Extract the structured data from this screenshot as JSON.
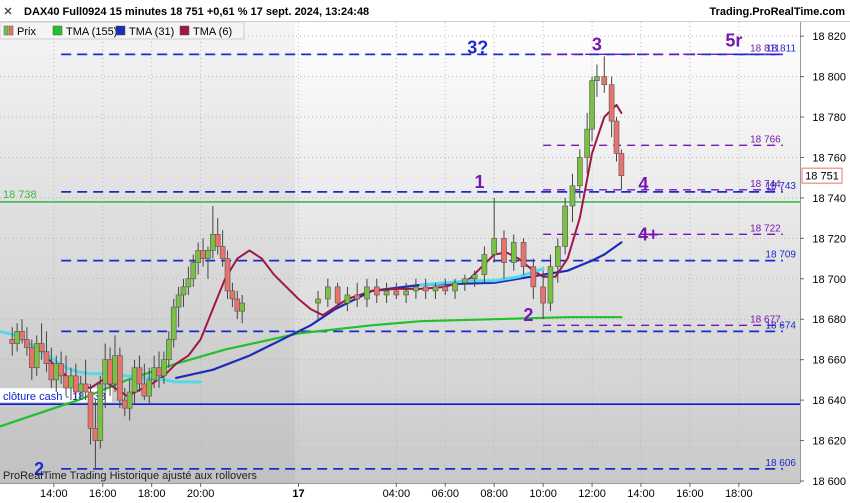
{
  "header": {
    "instrument_line": "DAX40 Full0924 15 minutes 18 751 +0,61 % 17 sept. 2024, 13:24:48",
    "brand": "Trading.ProRealTime.com"
  },
  "footer_note": "ProRealTime Trading Historique ajusté aux rollovers",
  "last_price_tag": "18 751",
  "colors": {
    "up": "#7ac143",
    "down": "#e8736c",
    "tma155": "#22c02a",
    "tma31": "#1d2bb5",
    "tma6": "#a01845",
    "cyan": "#55d8e8",
    "blue_level": "#1a2bd0",
    "purple": "#7a16b0",
    "green_level": "#3fb94a",
    "cash_line": "#0a1ed8"
  },
  "chart_data": {
    "type": "line",
    "legend": [
      {
        "label": "Prix",
        "color": "#e8736c",
        "icon": "candle-swatch"
      },
      {
        "label": "TMA (155)",
        "color": "#22c02a"
      },
      {
        "label": "TMA (31)",
        "color": "#1d2bb5"
      },
      {
        "label": "TMA (6)",
        "color": "#a01845"
      }
    ],
    "x_ticks": [
      "14:00",
      "16:00",
      "18:00",
      "20:00",
      "17",
      "04:00",
      "06:00",
      "08:00",
      "10:00",
      "12:00",
      "14:00",
      "16:00",
      "18:00"
    ],
    "x_tick_times": [
      -10,
      -8,
      -6,
      -4,
      0,
      4,
      6,
      8,
      10,
      12,
      14,
      16,
      18
    ],
    "x_range": [
      -12.2,
      20.5
    ],
    "y_ticks": [
      "18 820",
      "18 800",
      "18 780",
      "18 760",
      "18 740",
      "18 720",
      "18 700",
      "18 680",
      "18 660",
      "18 640",
      "18 620",
      "18 600"
    ],
    "y_tick_values": [
      18820,
      18800,
      18780,
      18760,
      18740,
      18720,
      18700,
      18680,
      18660,
      18640,
      18620,
      18600
    ],
    "ylim": [
      18599,
      18827
    ],
    "series": [
      {
        "name": "TMA (155)",
        "key": "tma155",
        "x": [
          -12.2,
          -9,
          -7,
          -5,
          -3,
          0,
          3,
          5,
          8,
          11,
          13.2
        ],
        "y": [
          18627,
          18640,
          18650,
          18658,
          18665,
          18673,
          18677,
          18679,
          18680,
          18681,
          18681
        ]
      },
      {
        "name": "TMA (31)",
        "key": "tma31",
        "x": [
          -5,
          -3.5,
          -2,
          -1,
          0.5,
          1.5,
          3,
          5,
          8,
          10,
          11,
          12,
          12.5,
          13.2
        ],
        "y": [
          18651,
          18655,
          18662,
          18668,
          18677,
          18685,
          18694,
          18697,
          18698,
          18702,
          18704,
          18709,
          18712,
          18718
        ]
      },
      {
        "name": "TMA (6)",
        "key": "tma6",
        "x": [
          -10.2,
          -9.5,
          -9,
          -8.5,
          -8,
          -7.5,
          -7,
          -6.5,
          -6,
          -5.5,
          -5,
          -4.5,
          -4,
          -3.5,
          -3,
          -2.5,
          -2,
          -1.5,
          -1,
          0,
          0.5,
          1,
          2,
          3,
          4,
          5,
          6,
          7,
          7.5,
          8,
          8.5,
          9,
          9.5,
          10,
          10.5,
          11,
          11.5,
          12,
          12.5,
          13,
          13.2
        ],
        "y": [
          18660,
          18652,
          18647,
          18646,
          18650,
          18646,
          18642,
          18645,
          18648,
          18652,
          18658,
          18662,
          18670,
          18685,
          18700,
          18710,
          18714,
          18710,
          18702,
          18690,
          18685,
          18682,
          18690,
          18694,
          18695,
          18695,
          18696,
          18700,
          18706,
          18712,
          18713,
          18710,
          18705,
          18701,
          18701,
          18710,
          18730,
          18762,
          18780,
          18786,
          18782
        ]
      },
      {
        "name": "",
        "key": "cyan",
        "x": [
          -12.2,
          -11.5,
          -11,
          -10.5,
          -10,
          -9.5,
          -9,
          -8.5,
          -8,
          -7.5,
          -7,
          -6.5,
          -6,
          -5.5,
          -5,
          -4.5,
          -4
        ],
        "y": [
          18674,
          18672,
          18668,
          18664,
          18660,
          18656,
          18654,
          18653,
          18653,
          18652,
          18652,
          18651,
          18651,
          18650,
          18649,
          18649,
          18649
        ]
      },
      {
        "name": "",
        "key": "cyan",
        "x": [
          5,
          6,
          7,
          8,
          9,
          10
        ],
        "y": [
          18697,
          18698,
          18699,
          18699,
          18701,
          18705
        ]
      }
    ],
    "candles": [
      [
        -11.7,
        18670,
        18676,
        18662,
        18668
      ],
      [
        -11.5,
        18668,
        18678,
        18664,
        18674
      ],
      [
        -11.3,
        18674,
        18680,
        18668,
        18670
      ],
      [
        -11.1,
        18670,
        18676,
        18662,
        18666
      ],
      [
        -10.9,
        18666,
        18670,
        18650,
        18656
      ],
      [
        -10.7,
        18656,
        18672,
        18652,
        18668
      ],
      [
        -10.5,
        18668,
        18678,
        18660,
        18664
      ],
      [
        -10.3,
        18664,
        18674,
        18654,
        18658
      ],
      [
        -10.1,
        18658,
        18666,
        18646,
        18650
      ],
      [
        -9.9,
        18650,
        18662,
        18644,
        18658
      ],
      [
        -9.7,
        18658,
        18664,
        18648,
        18652
      ],
      [
        -9.5,
        18652,
        18662,
        18642,
        18646
      ],
      [
        -9.3,
        18646,
        18656,
        18640,
        18652
      ],
      [
        -9.1,
        18652,
        18658,
        18640,
        18644
      ],
      [
        -8.9,
        18644,
        18652,
        18640,
        18648
      ],
      [
        -8.7,
        18648,
        18660,
        18640,
        18644
      ],
      [
        -8.5,
        18644,
        18648,
        18618,
        18626
      ],
      [
        -8.3,
        18626,
        18640,
        18606,
        18620
      ],
      [
        -8.1,
        18620,
        18652,
        18616,
        18648
      ],
      [
        -7.9,
        18648,
        18668,
        18636,
        18660
      ],
      [
        -7.7,
        18660,
        18666,
        18642,
        18648
      ],
      [
        -7.5,
        18648,
        18672,
        18644,
        18662
      ],
      [
        -7.3,
        18662,
        18666,
        18636,
        18640
      ],
      [
        -7.1,
        18640,
        18646,
        18632,
        18636
      ],
      [
        -6.9,
        18636,
        18650,
        18630,
        18644
      ],
      [
        -6.7,
        18644,
        18660,
        18638,
        18656
      ],
      [
        -6.5,
        18656,
        18662,
        18644,
        18648
      ],
      [
        -6.3,
        18648,
        18658,
        18640,
        18642
      ],
      [
        -6.1,
        18642,
        18656,
        18638,
        18650
      ],
      [
        -5.9,
        18650,
        18662,
        18646,
        18656
      ],
      [
        -5.7,
        18656,
        18664,
        18646,
        18652
      ],
      [
        -5.5,
        18652,
        18664,
        18648,
        18660
      ],
      [
        -5.3,
        18660,
        18674,
        18656,
        18670
      ],
      [
        -5.1,
        18670,
        18690,
        18666,
        18686
      ],
      [
        -4.9,
        18686,
        18696,
        18676,
        18692
      ],
      [
        -4.7,
        18692,
        18700,
        18686,
        18696
      ],
      [
        -4.5,
        18696,
        18706,
        18692,
        18700
      ],
      [
        -4.3,
        18700,
        18712,
        18696,
        18708
      ],
      [
        -4.1,
        18708,
        18718,
        18702,
        18714
      ],
      [
        -3.9,
        18714,
        18720,
        18706,
        18710
      ],
      [
        -3.7,
        18710,
        18716,
        18700,
        18714
      ],
      [
        -3.5,
        18714,
        18736,
        18710,
        18722
      ],
      [
        -3.3,
        18722,
        18730,
        18712,
        18716
      ],
      [
        -3.1,
        18716,
        18724,
        18706,
        18710
      ],
      [
        -2.9,
        18710,
        18714,
        18690,
        18694
      ],
      [
        -2.7,
        18694,
        18698,
        18686,
        18690
      ],
      [
        -2.5,
        18690,
        18694,
        18680,
        18684
      ],
      [
        -2.3,
        18684,
        18692,
        18678,
        18688
      ],
      [
        0.8,
        18688,
        18694,
        18680,
        18690
      ],
      [
        1.2,
        18690,
        18700,
        18686,
        18696
      ],
      [
        1.6,
        18696,
        18698,
        18686,
        18688
      ],
      [
        2,
        18688,
        18696,
        18684,
        18692
      ],
      [
        2.4,
        18692,
        18698,
        18686,
        18690
      ],
      [
        2.8,
        18690,
        18700,
        18686,
        18696
      ],
      [
        3.2,
        18696,
        18700,
        18688,
        18692
      ],
      [
        3.6,
        18692,
        18698,
        18688,
        18694
      ],
      [
        4,
        18694,
        18698,
        18690,
        18692
      ],
      [
        4.4,
        18692,
        18698,
        18688,
        18694
      ],
      [
        4.8,
        18694,
        18700,
        18690,
        18696
      ],
      [
        5.2,
        18696,
        18700,
        18690,
        18694
      ],
      [
        5.6,
        18694,
        18698,
        18690,
        18696
      ],
      [
        6,
        18696,
        18700,
        18692,
        18694
      ],
      [
        6.4,
        18694,
        18700,
        18690,
        18698
      ],
      [
        6.8,
        18698,
        18702,
        18694,
        18700
      ],
      [
        7.2,
        18700,
        18704,
        18696,
        18702
      ],
      [
        7.6,
        18702,
        18716,
        18698,
        18712
      ],
      [
        8,
        18712,
        18740,
        18708,
        18720
      ],
      [
        8.4,
        18720,
        18724,
        18700,
        18708
      ],
      [
        8.8,
        18708,
        18722,
        18704,
        18718
      ],
      [
        9.2,
        18718,
        18720,
        18702,
        18706
      ],
      [
        9.6,
        18706,
        18710,
        18690,
        18696
      ],
      [
        10,
        18696,
        18704,
        18680,
        18688
      ],
      [
        10.3,
        18688,
        18712,
        18684,
        18706
      ],
      [
        10.6,
        18706,
        18720,
        18698,
        18716
      ],
      [
        10.9,
        18716,
        18740,
        18712,
        18736
      ],
      [
        11.2,
        18736,
        18752,
        18728,
        18746
      ],
      [
        11.5,
        18746,
        18764,
        18740,
        18760
      ],
      [
        11.8,
        18760,
        18782,
        18752,
        18774
      ],
      [
        12,
        18774,
        18800,
        18768,
        18798
      ],
      [
        12.2,
        18798,
        18806,
        18790,
        18800
      ],
      [
        12.5,
        18800,
        18810,
        18792,
        18796
      ],
      [
        12.8,
        18796,
        18800,
        18770,
        18778
      ],
      [
        13,
        18778,
        18780,
        18758,
        18762
      ],
      [
        13.2,
        18762,
        18764,
        18744,
        18751
      ]
    ],
    "levels": [
      {
        "value": 18811,
        "style": "blue",
        "x_from": -9.7,
        "x_to": 19.8,
        "label": "",
        "annotation": "3?"
      },
      {
        "value": 18811,
        "style": "purple",
        "x_from": 10,
        "x_to": 19.8,
        "label": "18 811",
        "annotation": ""
      },
      {
        "value": 18811,
        "style": "blue",
        "x_from": 18,
        "x_to": 19.8,
        "label": "18 811",
        "annotation": ""
      },
      {
        "value": 18766,
        "style": "purple",
        "x_from": 10,
        "x_to": 19.8,
        "label": "18 766",
        "annotation": ""
      },
      {
        "value": 18744,
        "style": "purple",
        "x_from": 10,
        "x_to": 19.8,
        "label": "18 744",
        "annotation": ""
      },
      {
        "value": 18743,
        "style": "blue",
        "x_from": -9.7,
        "x_to": 19.8,
        "label": "18 743",
        "annotation": ""
      },
      {
        "value": 18722,
        "style": "purple",
        "x_from": 10,
        "x_to": 19.8,
        "label": "18 722",
        "annotation": ""
      },
      {
        "value": 18709,
        "style": "blue",
        "x_from": -9.7,
        "x_to": 19.8,
        "label": "18 709",
        "annotation": ""
      },
      {
        "value": 18677,
        "style": "purple",
        "x_from": 10,
        "x_to": 19.8,
        "label": "18 677",
        "annotation": ""
      },
      {
        "value": 18674,
        "style": "blue",
        "x_from": -9.7,
        "x_to": 19.8,
        "label": "18 674",
        "annotation": ""
      },
      {
        "value": 18606,
        "style": "blue",
        "x_from": -9.7,
        "x_to": 19.8,
        "label": "18 606",
        "annotation": ""
      }
    ],
    "solid_levels": [
      {
        "value": 18738,
        "color_key": "green_level",
        "label": "18 738"
      },
      {
        "value": 18638,
        "color_key": "cash_line",
        "label": "clôture cash -  18 638"
      }
    ],
    "annotations": [
      {
        "text": "1",
        "x": 7.4,
        "y": 18745,
        "color_key": "purple"
      },
      {
        "text": "2",
        "x": 9.4,
        "y": 18679,
        "color_key": "purple"
      },
      {
        "text": "2",
        "x": -10.6,
        "y": 18603,
        "color_key": "blue_level"
      },
      {
        "text": "3",
        "x": 12.2,
        "y": 18813,
        "color_key": "purple"
      },
      {
        "text": "4",
        "x": 14.1,
        "y": 18744,
        "color_key": "purple"
      },
      {
        "text": "4+",
        "x": 14.3,
        "y": 18719,
        "color_key": "purple"
      },
      {
        "text": "5r",
        "x": 17.8,
        "y": 18815,
        "color_key": "purple"
      }
    ]
  }
}
